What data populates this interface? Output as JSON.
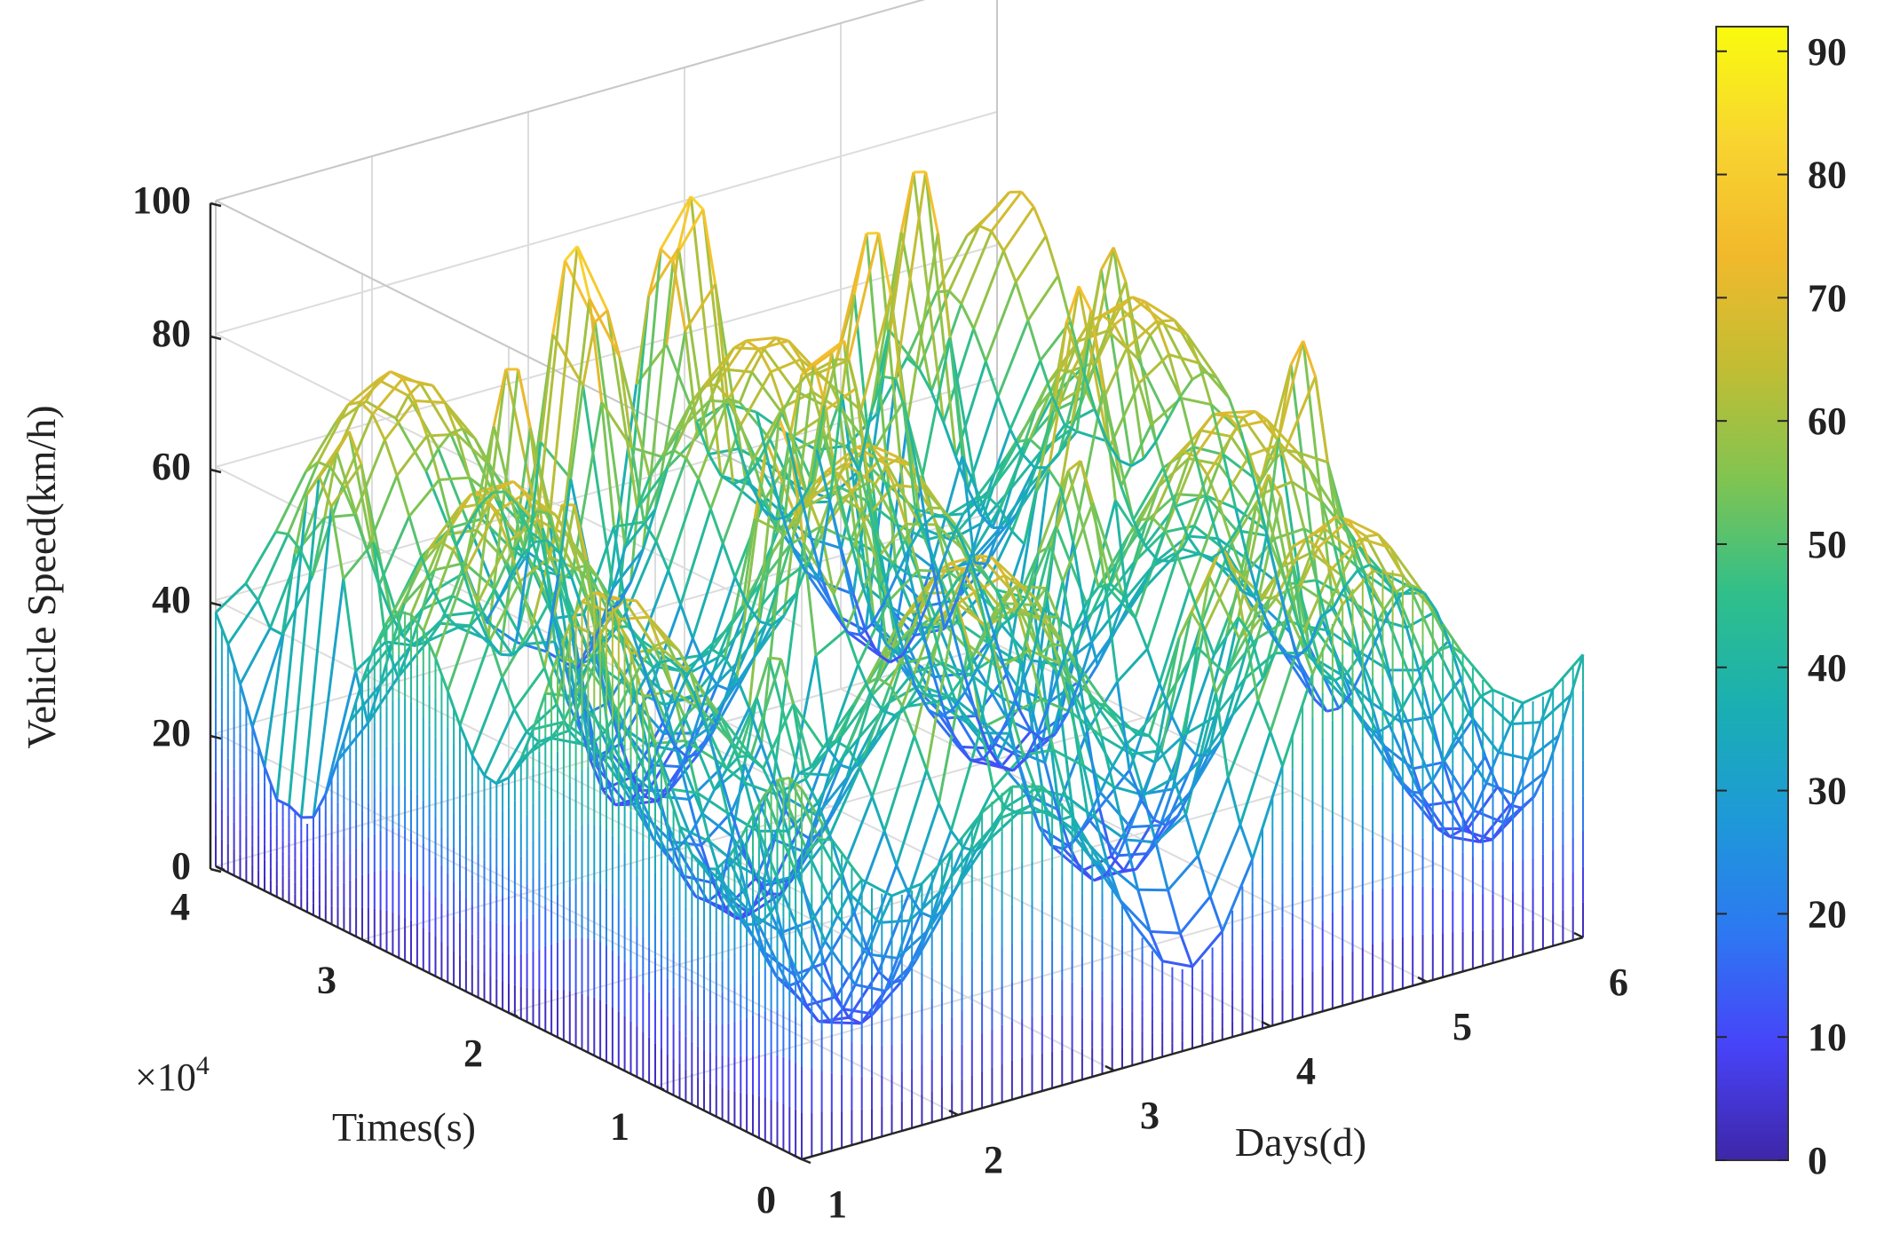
{
  "chart_data": {
    "type": "surface-3d",
    "zlabel": "Vehicle Speed(km/h)",
    "ylabel": "Times(s)",
    "xlabel": "Days(d)",
    "y_exponent_label": "×10",
    "y_exponent_power": "4",
    "x_ticks": [
      "1",
      "2",
      "3",
      "4",
      "5",
      "6"
    ],
    "y_ticks": [
      "0",
      "1",
      "2",
      "3",
      "4"
    ],
    "z_ticks": [
      "0",
      "20",
      "40",
      "60",
      "80",
      "100"
    ],
    "colorbar_ticks": [
      "0",
      "10",
      "20",
      "30",
      "40",
      "50",
      "60",
      "70",
      "80",
      "90"
    ],
    "xlim": [
      1,
      6
    ],
    "ylim": [
      0,
      4
    ],
    "zlim": [
      0,
      100
    ],
    "clim": [
      0,
      92
    ],
    "colormap": [
      "#3e26a8",
      "#4743f8",
      "#2d78f2",
      "#1e99d8",
      "#1aafb2",
      "#30bf8a",
      "#80c452",
      "#c2bd33",
      "#f2b92c",
      "#f8d530",
      "#f9fb0e"
    ],
    "grid": true,
    "colorbar": "right",
    "peaks": [
      {
        "x": 1.3,
        "y": 3.5,
        "z": 78
      },
      {
        "x": 1.6,
        "y": 2.2,
        "z": 72
      },
      {
        "x": 2.0,
        "y": 1.2,
        "z": 58
      },
      {
        "x": 2.2,
        "y": 3.2,
        "z": 80
      },
      {
        "x": 2.6,
        "y": 0.6,
        "z": 72
      },
      {
        "x": 2.8,
        "y": 2.0,
        "z": 85
      },
      {
        "x": 3.0,
        "y": 3.6,
        "z": 95
      },
      {
        "x": 3.4,
        "y": 1.0,
        "z": 70
      },
      {
        "x": 3.6,
        "y": 2.6,
        "z": 90
      },
      {
        "x": 3.8,
        "y": 3.8,
        "z": 96
      },
      {
        "x": 4.0,
        "y": 0.4,
        "z": 75
      },
      {
        "x": 4.2,
        "y": 1.6,
        "z": 72
      },
      {
        "x": 4.4,
        "y": 3.2,
        "z": 88
      },
      {
        "x": 4.8,
        "y": 0.9,
        "z": 70
      },
      {
        "x": 5.0,
        "y": 2.4,
        "z": 80
      },
      {
        "x": 5.2,
        "y": 3.7,
        "z": 82
      },
      {
        "x": 5.6,
        "y": 1.5,
        "z": 76
      },
      {
        "x": 5.8,
        "y": 3.0,
        "z": 72
      }
    ]
  }
}
